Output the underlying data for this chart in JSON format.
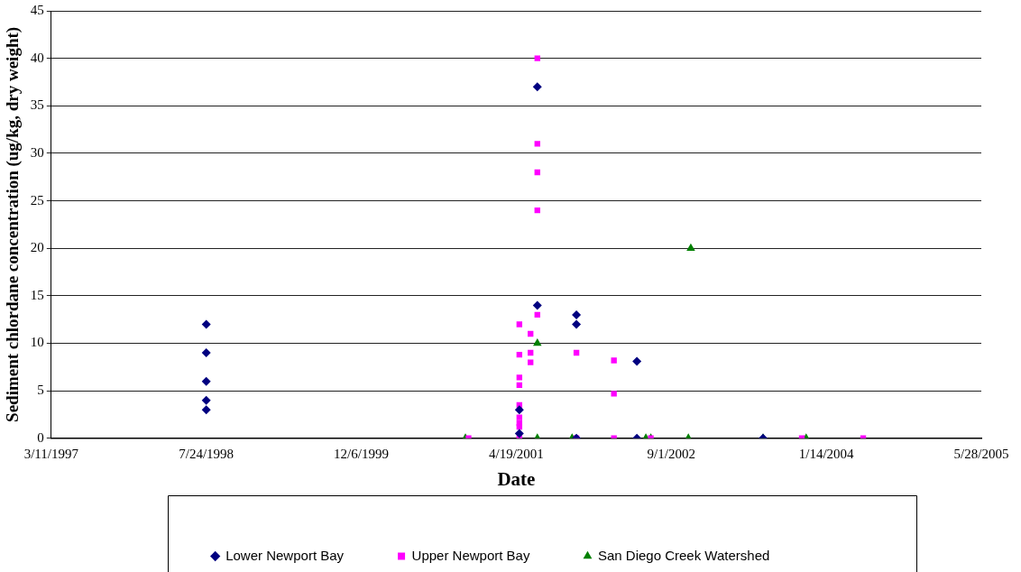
{
  "chart_data": {
    "type": "scatter",
    "xlabel": "Date",
    "ylabel": "Sediment chlordane concentration (ug/kg, dry weight)",
    "xlim": [
      "1997-03-11",
      "2005-05-28"
    ],
    "xticks": [
      {
        "value": "1997-03-11",
        "label": "3/11/1997"
      },
      {
        "value": "1998-07-24",
        "label": "7/24/1998"
      },
      {
        "value": "1999-12-06",
        "label": "12/6/1999"
      },
      {
        "value": "2001-04-19",
        "label": "4/19/2001"
      },
      {
        "value": "2002-09-01",
        "label": "9/1/2002"
      },
      {
        "value": "2004-01-14",
        "label": "1/14/2004"
      },
      {
        "value": "2005-05-28",
        "label": "5/28/2005"
      }
    ],
    "ylim": [
      0,
      45
    ],
    "yticks": [
      0,
      5,
      10,
      15,
      20,
      25,
      30,
      35,
      40,
      45
    ],
    "grid": "y",
    "legend": "bottom",
    "series": [
      {
        "name": "Lower Newport Bay",
        "color": "#000080",
        "marker": "diamond",
        "x": [
          "1998-07-24",
          "1998-07-24",
          "1998-07-24",
          "1998-07-24",
          "1998-07-24",
          "2001-04-29",
          "2001-04-29",
          "2001-06-26",
          "2001-06-26",
          "2001-10-30",
          "2001-10-30",
          "2001-10-30",
          "2002-05-13",
          "2002-05-13",
          "2003-06-24"
        ],
        "values": [
          12,
          9,
          6,
          4,
          3,
          3,
          0.5,
          37,
          14,
          13,
          12,
          0,
          8.1,
          0,
          0
        ]
      },
      {
        "name": "Upper Newport Bay",
        "color": "#ff00ff",
        "marker": "square",
        "x": [
          "2000-11-16",
          "2001-04-29",
          "2001-04-29",
          "2001-04-29",
          "2001-04-29",
          "2001-04-29",
          "2001-04-29",
          "2001-04-29",
          "2001-04-29",
          "2001-04-29",
          "2001-06-04",
          "2001-06-04",
          "2001-06-04",
          "2001-06-26",
          "2001-06-26",
          "2001-06-26",
          "2001-06-26",
          "2001-06-26",
          "2001-10-30",
          "2001-10-30",
          "2002-02-28",
          "2002-02-28",
          "2002-02-28",
          "2002-06-27",
          "2003-10-27",
          "2004-05-12"
        ],
        "values": [
          0,
          12,
          8.8,
          6.4,
          5.6,
          3.5,
          2.2,
          1.6,
          1.2,
          0,
          11,
          9,
          8,
          40,
          31,
          28,
          24,
          13,
          9,
          0,
          8.2,
          4.7,
          0,
          0,
          0,
          0
        ]
      },
      {
        "name": "San Diego Creek Watershed",
        "color": "#008000",
        "marker": "triangle",
        "x": [
          "2000-11-06",
          "2001-06-26",
          "2001-06-26",
          "2001-10-16",
          "2002-06-11",
          "2002-06-27",
          "2002-10-26",
          "2002-11-03",
          "2003-06-24",
          "2003-11-10"
        ],
        "values": [
          0,
          10,
          0,
          0,
          0,
          0,
          0,
          20,
          0,
          0
        ]
      }
    ]
  }
}
